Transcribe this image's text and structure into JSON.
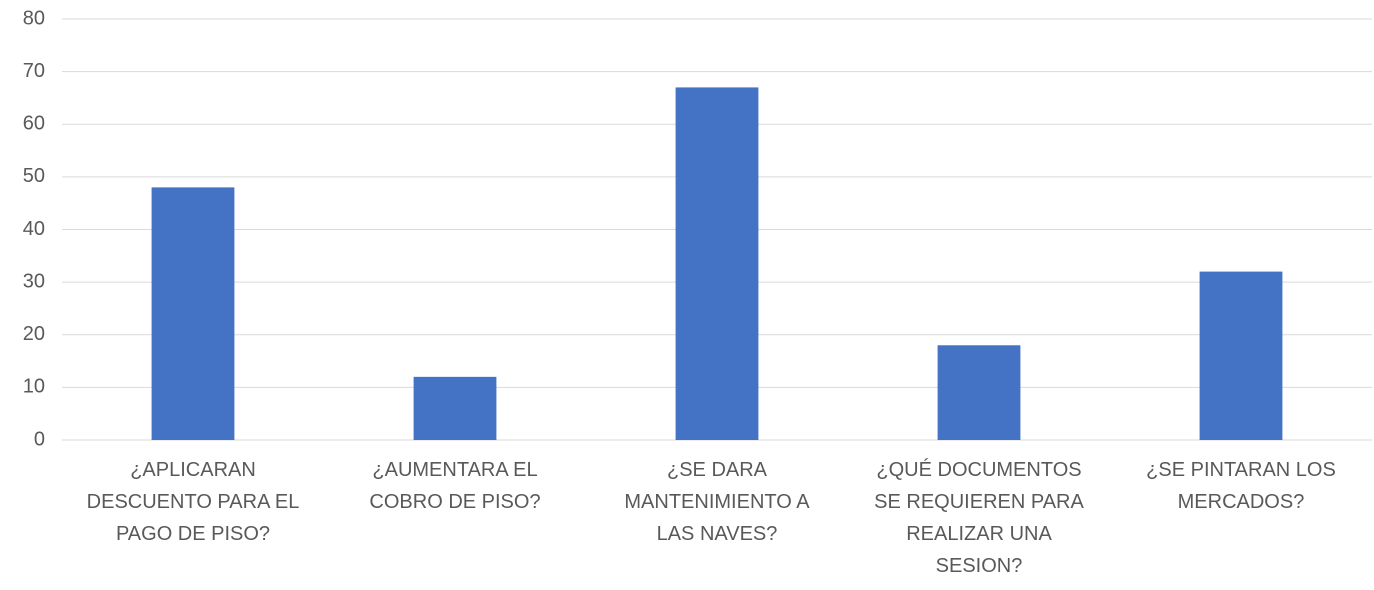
{
  "chart_data": {
    "type": "bar",
    "categories": [
      "¿APLICARAN DESCUENTO PARA EL PAGO DE PISO?",
      "¿AUMENTARA EL COBRO DE PISO?",
      "¿SE DARA MANTENIMIENTO A LAS NAVES?",
      "¿QUÉ DOCUMENTOS SE REQUIEREN PARA REALIZAR UNA SESION?",
      "¿SE PINTARAN LOS MERCADOS?"
    ],
    "values": [
      48,
      12,
      67,
      18,
      32
    ],
    "color": "#4472c4",
    "ylim": [
      0,
      80
    ],
    "yticks": [
      0,
      10,
      20,
      30,
      40,
      50,
      60,
      70,
      80
    ],
    "grid": true
  }
}
